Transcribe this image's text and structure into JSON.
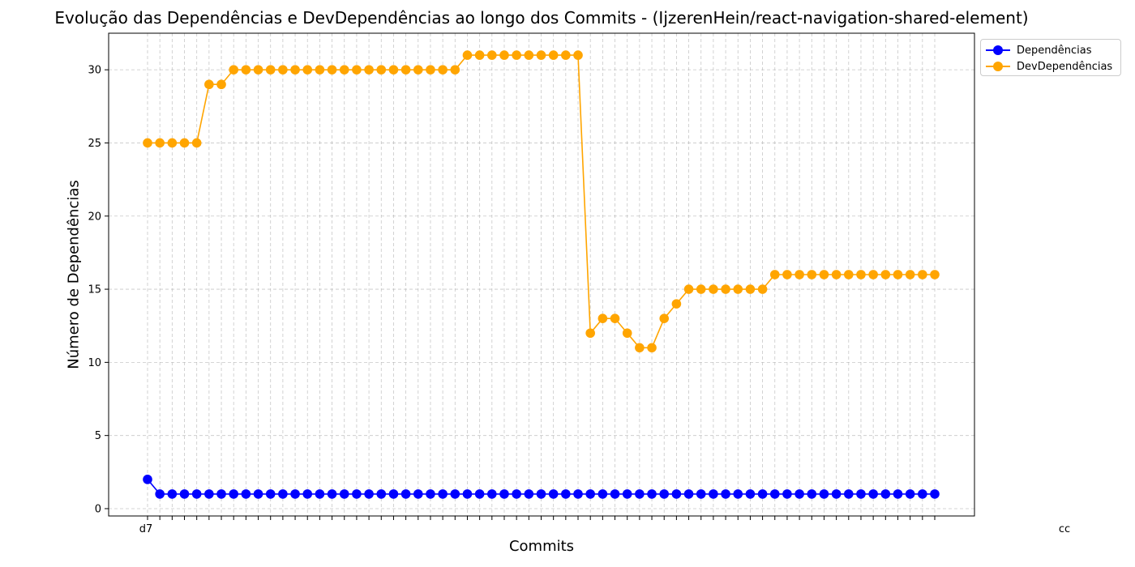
{
  "chart_data": {
    "type": "line",
    "title": "Evolução das Dependências e DevDependências ao longo dos Commits - (IjzerenHein/react-navigation-shared-element)",
    "xlabel": "Commits",
    "ylabel": "Número de Dependências",
    "ylim": [
      -0.5,
      32.5
    ],
    "yticks": [
      0,
      5,
      10,
      15,
      20,
      25,
      30
    ],
    "grid": true,
    "legend_position": "outside-top-right",
    "x_tick_labels_note": "65 overlapping commit-hash tick labels (illegible)",
    "first_x_label": "d7",
    "last_x_label": "cc",
    "num_points": 65,
    "series": [
      {
        "name": "Dependências",
        "color": "#0000ff",
        "values": [
          2,
          1,
          1,
          1,
          1,
          1,
          1,
          1,
          1,
          1,
          1,
          1,
          1,
          1,
          1,
          1,
          1,
          1,
          1,
          1,
          1,
          1,
          1,
          1,
          1,
          1,
          1,
          1,
          1,
          1,
          1,
          1,
          1,
          1,
          1,
          1,
          1,
          1,
          1,
          1,
          1,
          1,
          1,
          1,
          1,
          1,
          1,
          1,
          1,
          1,
          1,
          1,
          1,
          1,
          1,
          1,
          1,
          1,
          1,
          1,
          1,
          1,
          1,
          1,
          1
        ]
      },
      {
        "name": "DevDependências",
        "color": "#ffa500",
        "values": [
          25,
          25,
          25,
          25,
          25,
          29,
          29,
          30,
          30,
          30,
          30,
          30,
          30,
          30,
          30,
          30,
          30,
          30,
          30,
          30,
          30,
          30,
          30,
          30,
          30,
          30,
          31,
          31,
          31,
          31,
          31,
          31,
          31,
          31,
          31,
          31,
          12,
          13,
          13,
          12,
          11,
          11,
          13,
          14,
          15,
          15,
          15,
          15,
          15,
          15,
          15,
          16,
          16,
          16,
          16,
          16,
          16,
          16,
          16,
          16,
          16,
          16,
          16,
          16,
          16
        ]
      }
    ]
  }
}
